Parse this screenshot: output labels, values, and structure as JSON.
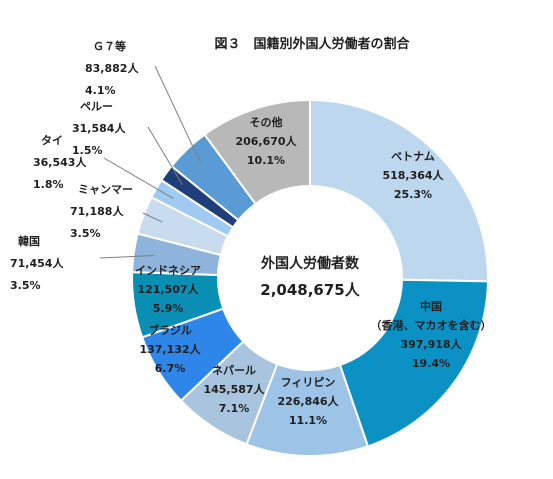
{
  "chart_data": {
    "type": "pie",
    "variant": "donut",
    "title": "図３　国籍別外国人労働者の割合",
    "center_label": "外国人労働者数",
    "center_value": "2,048,675人",
    "slices": [
      {
        "name": "ベトナム",
        "lines": [
          "ベトナム"
        ],
        "value_label": "518,364人",
        "pct_label": "25.3%",
        "value": 518364,
        "color": "#bdd7ee",
        "text_color": "#1f1f1f"
      },
      {
        "name": "中国",
        "lines": [
          "中国",
          "（香港、マカオを含む）"
        ],
        "value_label": "397,918人",
        "pct_label": "19.4%",
        "value": 397918,
        "color": "#0b91c4",
        "text_color": "#1f1f1f"
      },
      {
        "name": "フィリピン",
        "lines": [
          "フィリピン"
        ],
        "value_label": "226,846人",
        "pct_label": "11.1%",
        "value": 226846,
        "color": "#9dc3e6",
        "text_color": "#1f1f1f"
      },
      {
        "name": "ネパール",
        "lines": [
          "ネパール"
        ],
        "value_label": "145,587人",
        "pct_label": "7.1%",
        "value": 145587,
        "color": "#a9c4de",
        "text_color": "#1f1f1f"
      },
      {
        "name": "ブラジル",
        "lines": [
          "ブラジル"
        ],
        "value_label": "137,132人",
        "pct_label": "6.7%",
        "value": 137132,
        "color": "#2e86e8",
        "text_color": "#1f1f1f"
      },
      {
        "name": "インドネシア",
        "lines": [
          "インドネシア"
        ],
        "value_label": "121,507人",
        "pct_label": "5.9%",
        "value": 121507,
        "color": "#0a8fb4",
        "text_color": "#1f1f1f"
      },
      {
        "name": "韓国",
        "lines": [
          "韓国"
        ],
        "value_label": "71,454人",
        "pct_label": "3.5%",
        "value": 71454,
        "color": "#8fb4dc",
        "text_color": "#1f1f1f"
      },
      {
        "name": "ミャンマー",
        "lines": [
          "ミャンマー"
        ],
        "value_label": "71,188人",
        "pct_label": "3.5%",
        "value": 71188,
        "color": "#c9dcef",
        "text_color": "#1f1f1f"
      },
      {
        "name": "タイ",
        "lines": [
          "タイ"
        ],
        "value_label": "36,543人",
        "pct_label": "1.8%",
        "value": 36543,
        "color": "#9fcbf2",
        "text_color": "#1f1f1f"
      },
      {
        "name": "ペルー",
        "lines": [
          "ペルー"
        ],
        "value_label": "31,584人",
        "pct_label": "1.5%",
        "value": 31584,
        "color": "#1f3f7a",
        "text_color": "#1f1f1f"
      },
      {
        "name": "Ｇ７等",
        "lines": [
          "Ｇ７等"
        ],
        "value_label": "83,882人",
        "pct_label": "4.1%",
        "value": 83882,
        "color": "#5b9bd5",
        "text_color": "#1f1f1f"
      },
      {
        "name": "その他",
        "lines": [
          "その他"
        ],
        "value_label": "206,670人",
        "pct_label": "10.1%",
        "value": 206670,
        "color": "#b8b8b8",
        "text_color": "#1f1f1f"
      }
    ]
  }
}
